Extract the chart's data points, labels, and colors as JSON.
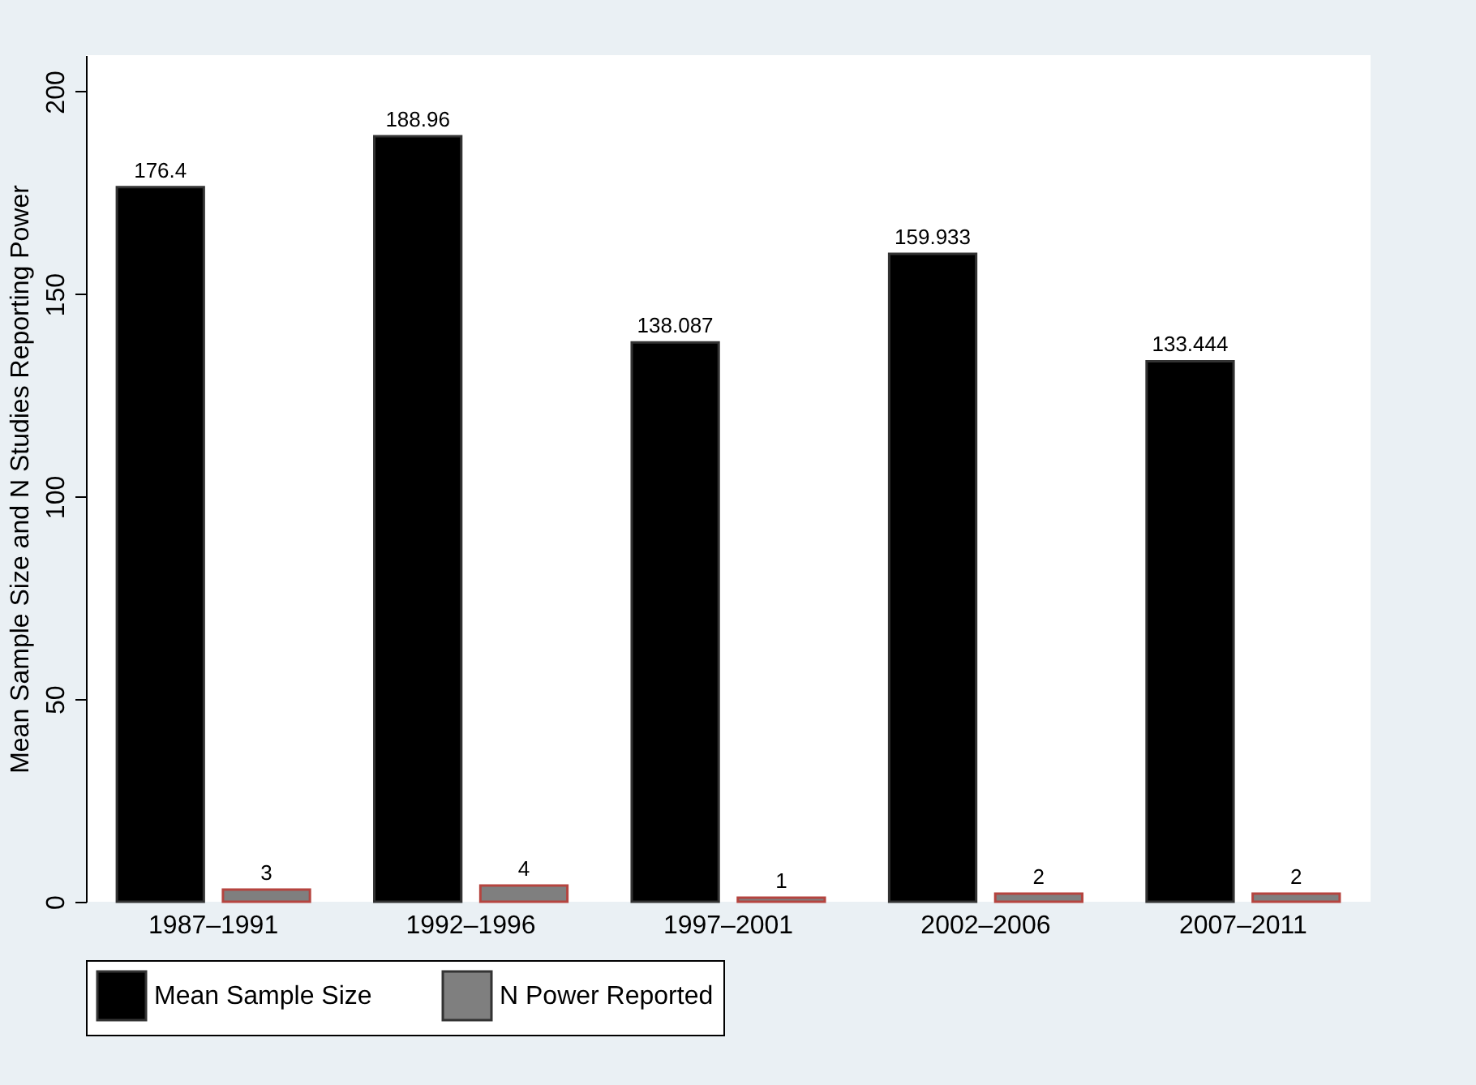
{
  "chart_data": {
    "type": "bar",
    "ylabel": "Mean Sample Size and N Studies Reporting Power",
    "categories": [
      "1987–1991",
      "1992–1996",
      "1997–2001",
      "2002–2006",
      "2007–2011"
    ],
    "series": [
      {
        "name": "Mean Sample Size",
        "color": "#000000",
        "values": [
          176.4,
          188.96,
          138.087,
          159.933,
          133.444
        ]
      },
      {
        "name": "N Power Reported",
        "color": "#7f7f7f",
        "values": [
          3,
          4,
          1,
          2,
          2
        ]
      }
    ],
    "ylim": [
      0,
      209
    ],
    "yticks": [
      0,
      50,
      100,
      150,
      200
    ],
    "grid": false,
    "legend": "bottom",
    "data_labels": true
  }
}
